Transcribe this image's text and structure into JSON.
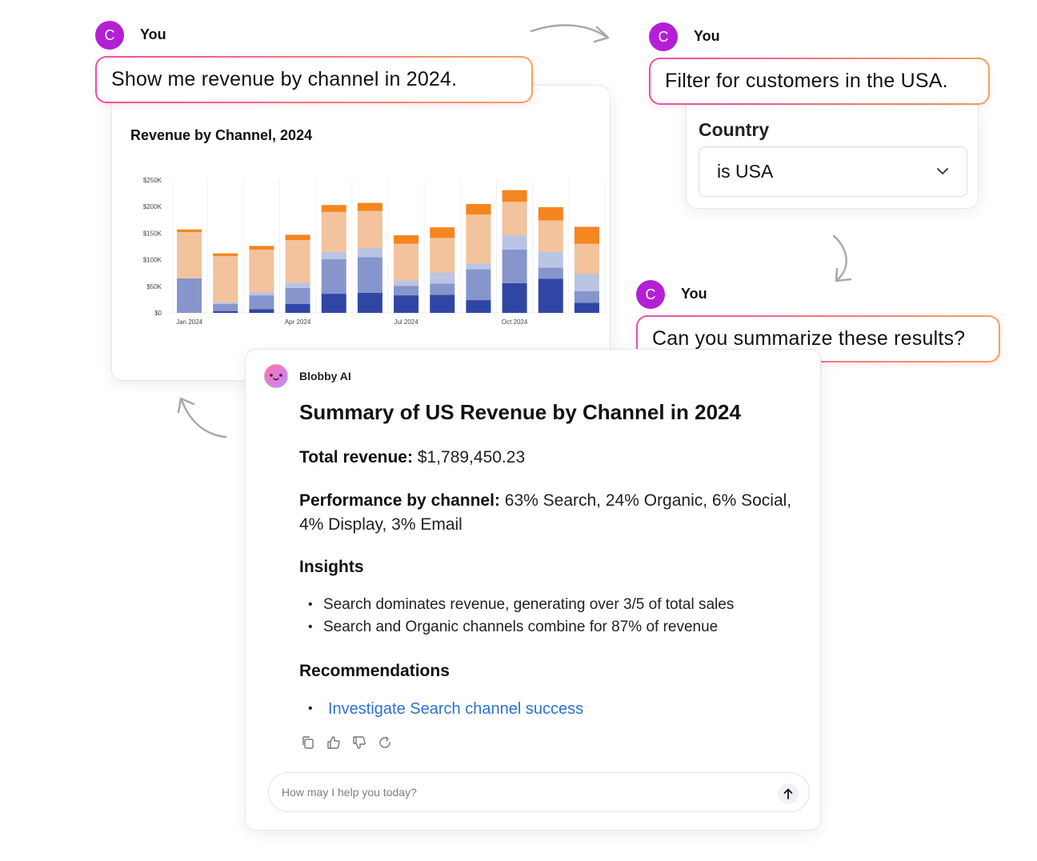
{
  "messages": [
    {
      "author": "You",
      "avatar_initial": "C",
      "text": "Show me revenue by channel in 2024."
    },
    {
      "author": "You",
      "avatar_initial": "C",
      "text": "Filter for customers in the USA."
    },
    {
      "author": "You",
      "avatar_initial": "C",
      "text": "Can you summarize these results?"
    }
  ],
  "filter": {
    "label": "Country",
    "value": "is USA",
    "icon": "chevron-down-icon"
  },
  "chart_data": {
    "type": "bar",
    "stacked": true,
    "title": "Revenue by Channel, 2024",
    "categories": [
      "Jan 2024",
      "Feb 2024",
      "Mar 2024",
      "Apr 2024",
      "May 2024",
      "Jun 2024",
      "Jul 2024",
      "Aug 2024",
      "Sep 2024",
      "Oct 2024",
      "Nov 2024",
      "Dec 2024"
    ],
    "x_tick_labels": [
      "Jan 2024",
      "Apr 2024",
      "Jul 2024",
      "Oct 2024"
    ],
    "y_tick_labels": [
      "$0",
      "$50K",
      "$100K",
      "$150K",
      "$200K",
      "$250K"
    ],
    "ylim": [
      0,
      250000
    ],
    "grid": true,
    "series": [
      {
        "color": "#2f46a5",
        "values": [
          0,
          3000,
          7000,
          17000,
          36000,
          38000,
          33000,
          34000,
          24000,
          56000,
          64000,
          19000
        ]
      },
      {
        "color": "#8695cb",
        "values": [
          65000,
          14000,
          26000,
          30000,
          65000,
          67000,
          18000,
          21000,
          58000,
          63000,
          21000,
          22000
        ]
      },
      {
        "color": "#bac4e3",
        "values": [
          0,
          3000,
          6000,
          10000,
          14000,
          17000,
          10000,
          21000,
          11000,
          27000,
          30000,
          32000
        ]
      },
      {
        "color": "#f2c39c",
        "values": [
          87000,
          87000,
          80000,
          80000,
          75000,
          70000,
          69000,
          65000,
          92000,
          63000,
          59000,
          57000
        ]
      },
      {
        "color": "#f5851f",
        "values": [
          5000,
          5000,
          7000,
          10000,
          13000,
          15000,
          16000,
          20000,
          20000,
          22000,
          25000,
          32000
        ]
      }
    ]
  },
  "assistant": {
    "name": "Blobby AI",
    "title": "Summary of US Revenue by Channel in 2024",
    "total_label": "Total revenue:",
    "total_value": "$1,789,450.23",
    "performance_label": "Performance by channel:",
    "performance_value": "63% Search, 24% Organic, 6% Social, 4% Display, 3% Email",
    "insights_heading": "Insights",
    "insights": [
      "Search dominates revenue, generating over 3/5 of total sales",
      "Search and Organic channels combine for 87% of revenue"
    ],
    "recommendations_heading": "Recommendations",
    "recommendations": [
      "Investigate Search channel success"
    ],
    "actions": [
      "copy-icon",
      "thumbs-up-icon",
      "thumbs-down-icon",
      "refresh-icon"
    ]
  },
  "composer": {
    "placeholder": "How may I help you today?",
    "send_icon": "arrow-up-icon"
  }
}
